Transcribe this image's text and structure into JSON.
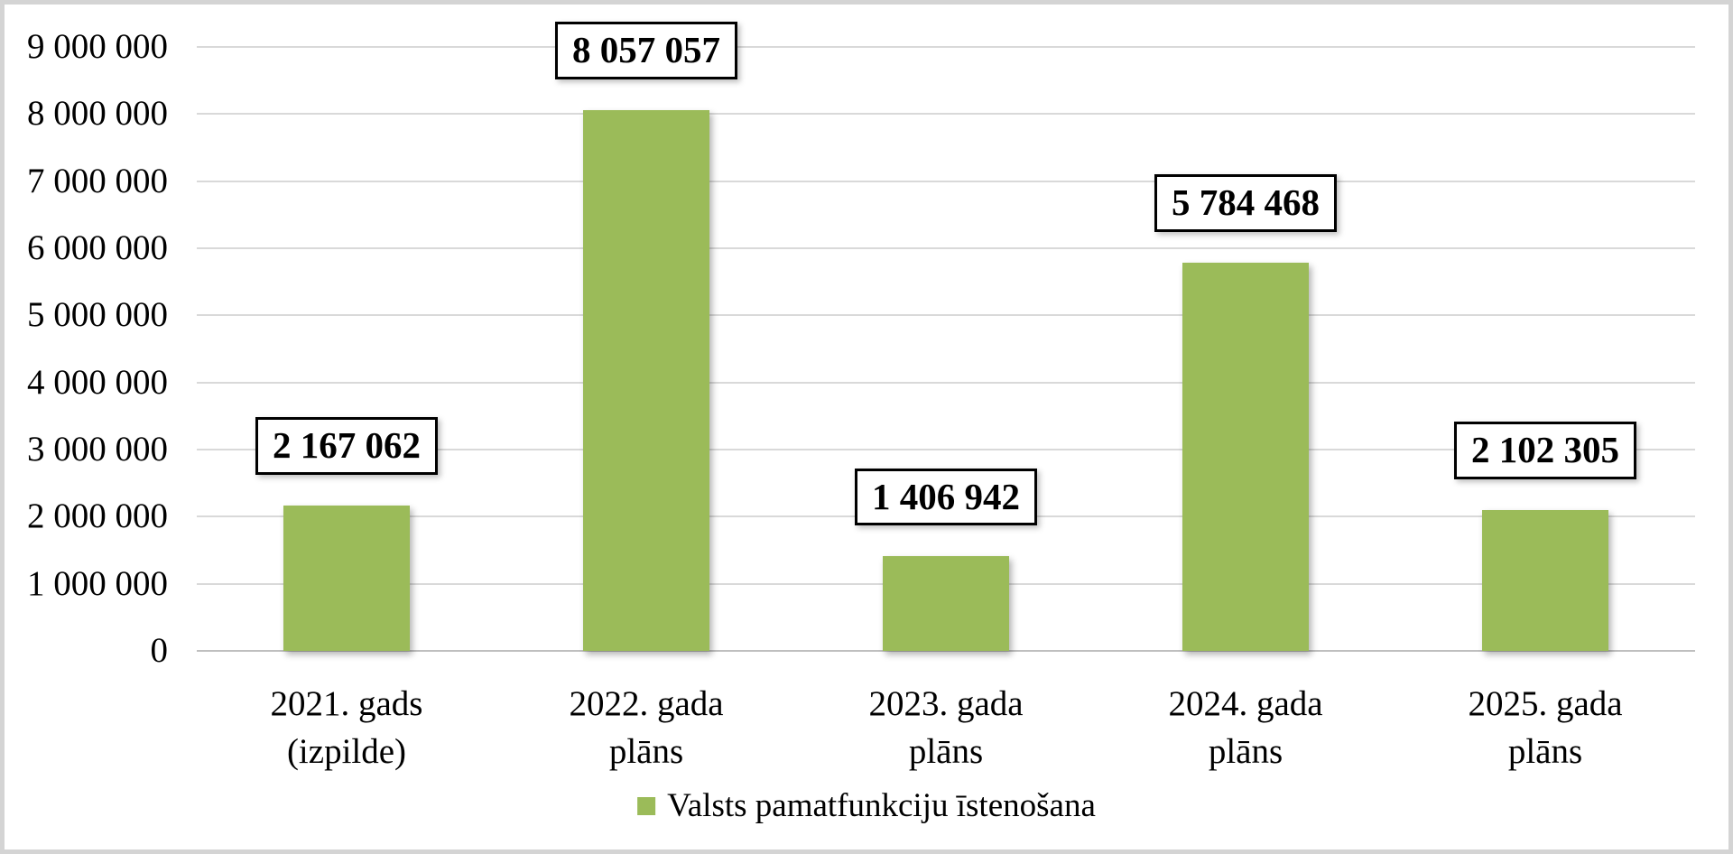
{
  "chart_data": {
    "type": "bar",
    "title": "",
    "xlabel": "",
    "ylabel": "",
    "categories": [
      "2021. gads\n(izpilde)",
      "2022. gada\nplāns",
      "2023. gada\nplāns",
      "2024. gada\nplāns",
      "2025. gada\nplāns"
    ],
    "series": [
      {
        "name": "Valsts pamatfunkciju īstenošana",
        "values": [
          2167062,
          8057057,
          1406942,
          5784468,
          2102305
        ],
        "data_labels": [
          "2 167 062",
          "8 057 057",
          "1 406 942",
          "5 784 468",
          "2 102 305"
        ]
      }
    ],
    "ylim": [
      0,
      9000000
    ],
    "y_tick_interval": 1000000,
    "y_tick_labels": [
      "0",
      "1 000 000",
      "2 000 000",
      "3 000 000",
      "4 000 000",
      "5 000 000",
      "6 000 000",
      "7 000 000",
      "8 000 000",
      "9 000 000"
    ],
    "grid": true,
    "legend_position": "bottom"
  },
  "legend": {
    "label": "Valsts pamatfunkciju īstenošana",
    "swatch_color": "#9BBB59"
  },
  "colors": {
    "bar_fill": "#9BBB59",
    "gridline": "#D9D9D9",
    "axis_line": "#BFBFBF",
    "data_label_border": "#000000",
    "data_label_bg": "#FFFFFF",
    "chart_border": "#D4D4D4",
    "background": "#FFFFFF",
    "text": "#000000"
  }
}
